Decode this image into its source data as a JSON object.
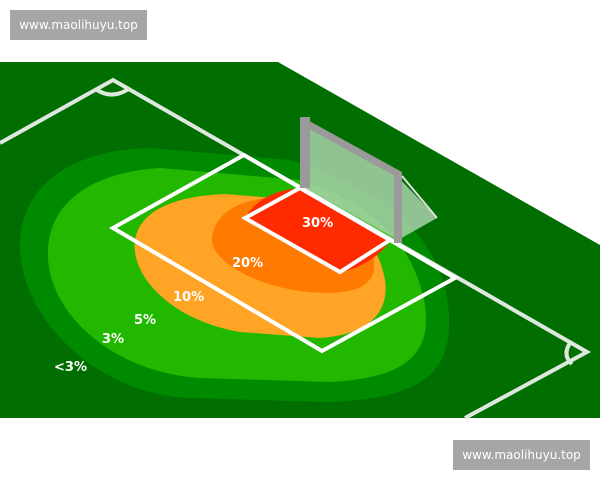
{
  "watermarks": {
    "top_left": "www.maolihuyu.top",
    "bottom_right": "www.maolihuyu.top"
  },
  "zones": [
    {
      "label": "30%",
      "color": "#ff2a00"
    },
    {
      "label": "20%",
      "color": "#ff7a00"
    },
    {
      "label": "10%",
      "color": "#ffa424"
    },
    {
      "label": "5%",
      "color": "#22b800"
    },
    {
      "label": "3%",
      "color": "#008a00"
    },
    {
      "label": "<3%",
      "color": "#006e00"
    }
  ]
}
